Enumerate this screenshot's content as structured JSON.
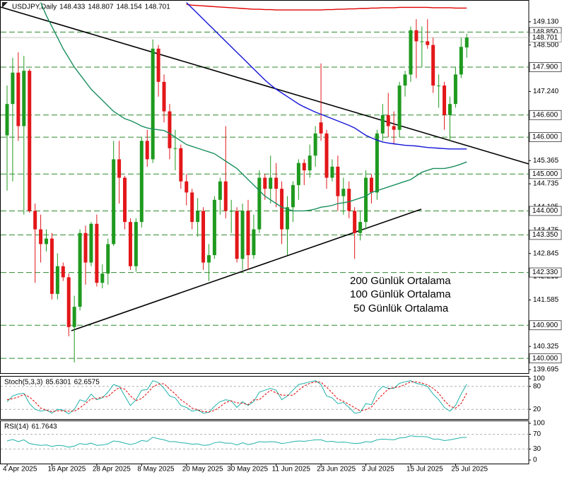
{
  "chart_data": [
    {
      "type": "candlestick",
      "title": "USDJPY,Daily",
      "categories": [
        "4 Apr 2025",
        null,
        null,
        null,
        null,
        null,
        null,
        null,
        "16 Apr 2025",
        null,
        null,
        null,
        null,
        null,
        null,
        null,
        "28 Apr 2025",
        null,
        null,
        null,
        null,
        null,
        null,
        null,
        "8 May 2025",
        null,
        null,
        null,
        null,
        null,
        null,
        null,
        "20 May 2025",
        null,
        null,
        null,
        null,
        null,
        null,
        null,
        "30 May 2025",
        null,
        null,
        null,
        null,
        null,
        null,
        null,
        "11 Jun 2025",
        null,
        null,
        null,
        null,
        null,
        null,
        null,
        "23 Jun 2025",
        null,
        null,
        null,
        null,
        null,
        null,
        null,
        "3 Jul 2025",
        null,
        null,
        null,
        null,
        null,
        null,
        null,
        "15 Jul 2025",
        null,
        null,
        null,
        null,
        null,
        null,
        null,
        "25 Jul 2025",
        null,
        null
      ],
      "open": [
        146.05,
        146.9,
        147.75,
        146.3,
        147.8,
        144.0,
        143.5,
        143.1,
        143.25,
        141.75,
        142.5,
        142.2,
        140.85,
        141.4,
        143.4,
        142.6,
        143.65,
        142.05,
        142.3,
        143.1,
        145.4,
        144.9,
        143.7,
        142.5,
        143.7,
        145.9,
        145.4,
        148.4,
        147.5,
        146.7,
        145.7,
        145.7,
        144.8,
        144.5,
        143.7,
        144.0,
        142.6,
        142.8,
        144.3,
        144.8,
        144.0,
        144.0,
        142.7,
        144.0,
        142.8,
        143.5,
        144.9,
        144.6,
        144.9,
        144.6,
        143.5,
        144.1,
        144.7,
        145.3,
        145.1,
        145.5,
        146.4,
        146.1,
        144.9,
        145.2,
        144.4,
        144.6,
        144.0,
        143.4,
        143.7,
        144.9,
        144.5,
        146.1,
        146.6,
        146.3,
        146.2,
        147.4,
        147.7,
        148.9,
        148.6,
        148.6,
        148.5,
        147.4,
        147.4,
        146.6,
        146.9,
        147.7,
        148.433
      ],
      "high": [
        147.4,
        148.15,
        148.3,
        148.2,
        147.85,
        144.2,
        143.9,
        143.5,
        143.4,
        142.85,
        142.6,
        142.3,
        141.7,
        143.5,
        143.6,
        143.7,
        143.9,
        142.55,
        143.25,
        145.9,
        145.9,
        144.95,
        143.8,
        143.8,
        146.0,
        146.2,
        148.65,
        148.5,
        147.7,
        146.9,
        146.2,
        145.8,
        145.0,
        144.6,
        144.35,
        144.1,
        143.1,
        144.4,
        144.9,
        146.3,
        144.3,
        144.1,
        144.2,
        144.3,
        143.9,
        145.1,
        145.0,
        145.5,
        145.3,
        144.8,
        144.4,
        144.8,
        145.4,
        145.4,
        145.8,
        146.3,
        148.0,
        146.2,
        145.4,
        145.5,
        144.9,
        144.8,
        144.1,
        144.0,
        145.1,
        145.0,
        146.2,
        146.9,
        147.2,
        146.7,
        147.5,
        147.8,
        149.0,
        149.2,
        149.0,
        149.2,
        148.7,
        147.7,
        147.5,
        147.1,
        147.9,
        148.7,
        148.807
      ],
      "low": [
        144.55,
        144.8,
        145.9,
        143.9,
        143.95,
        142.05,
        142.6,
        142.9,
        141.6,
        141.6,
        142.1,
        140.6,
        139.89,
        141.3,
        142.0,
        142.5,
        141.95,
        141.9,
        142.0,
        143.05,
        144.2,
        143.5,
        142.4,
        142.35,
        143.55,
        145.2,
        145.3,
        147.1,
        146.4,
        145.4,
        145.1,
        144.6,
        144.15,
        143.5,
        143.3,
        142.4,
        142.1,
        142.7,
        143.9,
        143.8,
        143.4,
        142.6,
        142.4,
        142.4,
        142.7,
        143.4,
        144.3,
        144.2,
        144.1,
        143.1,
        142.8,
        143.7,
        144.3,
        144.7,
        144.9,
        145.2,
        145.9,
        144.6,
        144.8,
        144.0,
        143.9,
        143.8,
        142.7,
        143.2,
        143.5,
        144.2,
        144.3,
        145.9,
        146.0,
        145.8,
        146.0,
        147.1,
        147.5,
        147.6,
        147.9,
        148.4,
        147.2,
        146.8,
        146.2,
        145.9,
        146.8,
        147.6,
        148.154
      ],
      "close": [
        146.9,
        147.75,
        146.3,
        147.8,
        144.0,
        143.5,
        143.1,
        143.25,
        141.75,
        142.5,
        142.2,
        140.85,
        141.4,
        143.4,
        142.6,
        143.65,
        142.05,
        142.3,
        143.1,
        145.4,
        144.9,
        143.7,
        142.5,
        143.7,
        145.9,
        145.4,
        148.4,
        147.5,
        146.7,
        145.7,
        145.7,
        144.8,
        144.5,
        143.7,
        144.0,
        142.6,
        142.8,
        144.3,
        144.8,
        144.0,
        144.0,
        142.7,
        144.0,
        142.8,
        143.5,
        144.9,
        144.6,
        144.9,
        144.6,
        143.5,
        144.1,
        144.7,
        145.3,
        145.1,
        145.5,
        146.1,
        146.1,
        144.9,
        145.2,
        144.4,
        144.6,
        144.0,
        143.4,
        143.7,
        144.9,
        144.5,
        146.1,
        146.6,
        146.3,
        146.2,
        147.4,
        147.7,
        148.9,
        148.6,
        148.6,
        148.5,
        147.4,
        147.4,
        146.6,
        146.9,
        147.7,
        148.45,
        148.701
      ],
      "up_color": "#1f9a1f",
      "down_color": "#e3171a",
      "series": [
        {
          "name": "200 Günlük Ortalama",
          "color": "#e00000",
          "values": [
            null,
            null,
            null,
            null,
            null,
            null,
            null,
            null,
            null,
            null,
            null,
            null,
            null,
            null,
            null,
            null,
            null,
            null,
            null,
            null,
            null,
            null,
            null,
            null,
            null,
            null,
            null,
            null,
            null,
            null,
            null,
            null,
            149.6,
            149.58,
            149.57,
            149.56,
            149.55,
            149.54,
            149.53,
            149.52,
            149.51,
            149.5,
            149.49,
            149.48,
            149.47,
            149.47,
            149.46,
            149.46,
            149.45,
            149.45,
            149.45,
            149.45,
            149.45,
            149.45,
            149.45,
            149.45,
            149.45,
            149.46,
            149.46,
            149.47,
            149.47,
            149.48,
            149.48,
            149.49,
            149.49,
            149.5,
            149.5,
            149.51,
            149.51,
            149.51,
            149.52,
            149.52,
            149.52,
            149.52,
            149.52,
            149.52,
            149.51,
            149.51,
            149.51,
            149.51,
            149.5,
            149.5,
            149.5
          ]
        },
        {
          "name": "100 Günlük Ortalama",
          "color": "#1414d8",
          "values": [
            null,
            null,
            null,
            null,
            null,
            null,
            null,
            null,
            null,
            null,
            null,
            null,
            null,
            null,
            null,
            null,
            null,
            null,
            null,
            null,
            null,
            null,
            null,
            null,
            null,
            null,
            null,
            null,
            null,
            null,
            null,
            null,
            149.65,
            149.5,
            149.35,
            149.2,
            149.05,
            148.9,
            148.75,
            148.6,
            148.45,
            148.3,
            148.15,
            148.0,
            147.85,
            147.7,
            147.55,
            147.42,
            147.3,
            147.2,
            147.1,
            147.0,
            146.9,
            146.82,
            146.75,
            146.68,
            146.62,
            146.56,
            146.5,
            146.44,
            146.38,
            146.32,
            146.25,
            146.15,
            146.05,
            145.98,
            145.92,
            145.87,
            145.84,
            145.82,
            145.8,
            145.78,
            145.77,
            145.76,
            145.74,
            145.72,
            145.71,
            145.7,
            145.69,
            145.68,
            145.68,
            145.68,
            145.68
          ]
        },
        {
          "name": "50 Günlük Ortalama",
          "color": "#1a8f5e",
          "values": [
            null,
            null,
            null,
            null,
            null,
            null,
            149.65,
            149.3,
            149.0,
            148.7,
            148.4,
            148.15,
            147.9,
            147.7,
            147.5,
            147.3,
            147.15,
            147.0,
            146.85,
            146.7,
            146.6,
            146.5,
            146.45,
            146.38,
            146.3,
            146.25,
            146.22,
            146.2,
            146.18,
            146.1,
            146.0,
            145.9,
            145.8,
            145.75,
            145.7,
            145.65,
            145.6,
            145.55,
            145.45,
            145.35,
            145.25,
            145.15,
            145.0,
            144.85,
            144.7,
            144.55,
            144.4,
            144.3,
            144.2,
            144.1,
            144.05,
            144.0,
            144.0,
            144.0,
            144.02,
            144.05,
            144.1,
            144.12,
            144.15,
            144.2,
            144.22,
            144.25,
            144.3,
            144.35,
            144.4,
            144.5,
            144.55,
            144.6,
            144.65,
            144.7,
            144.75,
            144.8,
            144.85,
            144.95,
            145.05,
            145.1,
            145.15,
            145.15,
            145.15,
            145.18,
            145.22,
            145.27,
            145.33
          ]
        }
      ],
      "levels": [
        {
          "value": 148.85,
          "label": "148.850"
        },
        {
          "value": 147.9,
          "label": "147.900"
        },
        {
          "value": 146.6,
          "label": "146.600"
        },
        {
          "value": 146.0,
          "label": "146.000"
        },
        {
          "value": 145.0,
          "label": "145.000"
        },
        {
          "value": 144.0,
          "label": "144.000"
        },
        {
          "value": 143.35,
          "label": "143.350"
        },
        {
          "value": 142.33,
          "label": "142.330"
        },
        {
          "value": 140.9,
          "label": "140.900"
        },
        {
          "value": 140.0,
          "label": "140.000"
        }
      ],
      "level_color": "#2e8b2e",
      "last_price": {
        "value": 148.701,
        "label": "148.701"
      },
      "ylim": [
        139.62,
        149.72
      ],
      "yticks": [
        {
          "value": 149.13,
          "label": "149.130"
        },
        {
          "value": 148.5,
          "label": "148.500"
        },
        {
          "value": 147.24,
          "label": "147.240"
        },
        {
          "value": 145.365,
          "label": "145.365"
        },
        {
          "value": 144.735,
          "label": "144.735"
        },
        {
          "value": 144.105,
          "label": "144.105"
        },
        {
          "value": 143.475,
          "label": "143.475"
        },
        {
          "value": 142.845,
          "label": "142.845"
        },
        {
          "value": 142.215,
          "label": "142.215"
        },
        {
          "value": 141.585,
          "label": "141.585"
        },
        {
          "value": 140.325,
          "label": "140.325"
        },
        {
          "value": 139.695,
          "label": "139.695"
        }
      ]
    },
    {
      "type": "line",
      "title": "Stoch(5,3,3)",
      "series": [
        {
          "color": "#20b2aa",
          "values": [
            40,
            55,
            60,
            62,
            35,
            20,
            15,
            18,
            10,
            20,
            18,
            8,
            20,
            45,
            40,
            60,
            45,
            50,
            65,
            85,
            80,
            55,
            30,
            45,
            70,
            72,
            95,
            90,
            75,
            55,
            50,
            30,
            25,
            15,
            18,
            10,
            12,
            28,
            40,
            45,
            42,
            25,
            40,
            30,
            40,
            65,
            70,
            75,
            70,
            45,
            55,
            70,
            85,
            88,
            92,
            95,
            85,
            55,
            50,
            35,
            38,
            25,
            10,
            12,
            35,
            32,
            65,
            80,
            75,
            75,
            88,
            92,
            95,
            88,
            85,
            80,
            60,
            45,
            25,
            15,
            30,
            60,
            85.6301
          ]
        },
        {
          "color": "#e00000",
          "dash": true,
          "values": [
            45,
            48,
            52,
            59,
            52,
            39,
            23,
            18,
            14,
            16,
            16,
            15,
            15,
            24,
            35,
            48,
            48,
            52,
            53,
            67,
            77,
            73,
            55,
            43,
            48,
            62,
            79,
            86,
            87,
            73,
            60,
            45,
            35,
            23,
            19,
            14,
            13,
            17,
            27,
            38,
            42,
            37,
            36,
            32,
            45,
            45,
            58,
            70,
            63,
            57,
            57,
            57,
            70,
            81,
            88,
            92,
            91,
            78,
            63,
            47,
            41,
            33,
            24,
            16,
            19,
            26,
            44,
            59,
            73,
            77,
            79,
            85,
            92,
            92,
            89,
            84,
            75,
            62,
            43,
            28,
            23,
            35,
            62.6575
          ]
        }
      ],
      "ylim": [
        0,
        100
      ],
      "yticks": [
        100,
        80,
        20
      ]
    },
    {
      "type": "line",
      "title": "RSI(14)",
      "series": [
        {
          "color": "#20b2aa",
          "values": [
            52,
            56,
            50,
            55,
            45,
            42,
            40,
            41,
            37,
            40,
            39,
            35,
            38,
            45,
            42,
            46,
            40,
            41,
            44,
            52,
            50,
            46,
            42,
            46,
            53,
            51,
            62,
            58,
            55,
            50,
            50,
            47,
            46,
            43,
            44,
            40,
            41,
            47,
            49,
            46,
            46,
            41,
            47,
            42,
            45,
            50,
            49,
            50,
            49,
            45,
            47,
            50,
            52,
            51,
            53,
            55,
            55,
            50,
            51,
            48,
            49,
            47,
            45,
            46,
            50,
            49,
            55,
            57,
            56,
            55,
            60,
            61,
            66,
            64,
            64,
            63,
            57,
            57,
            53,
            55,
            58,
            61,
            61.7643
          ]
        }
      ],
      "ylim": [
        0,
        100
      ],
      "yticks": [
        100,
        70,
        30,
        0
      ]
    }
  ]
}
